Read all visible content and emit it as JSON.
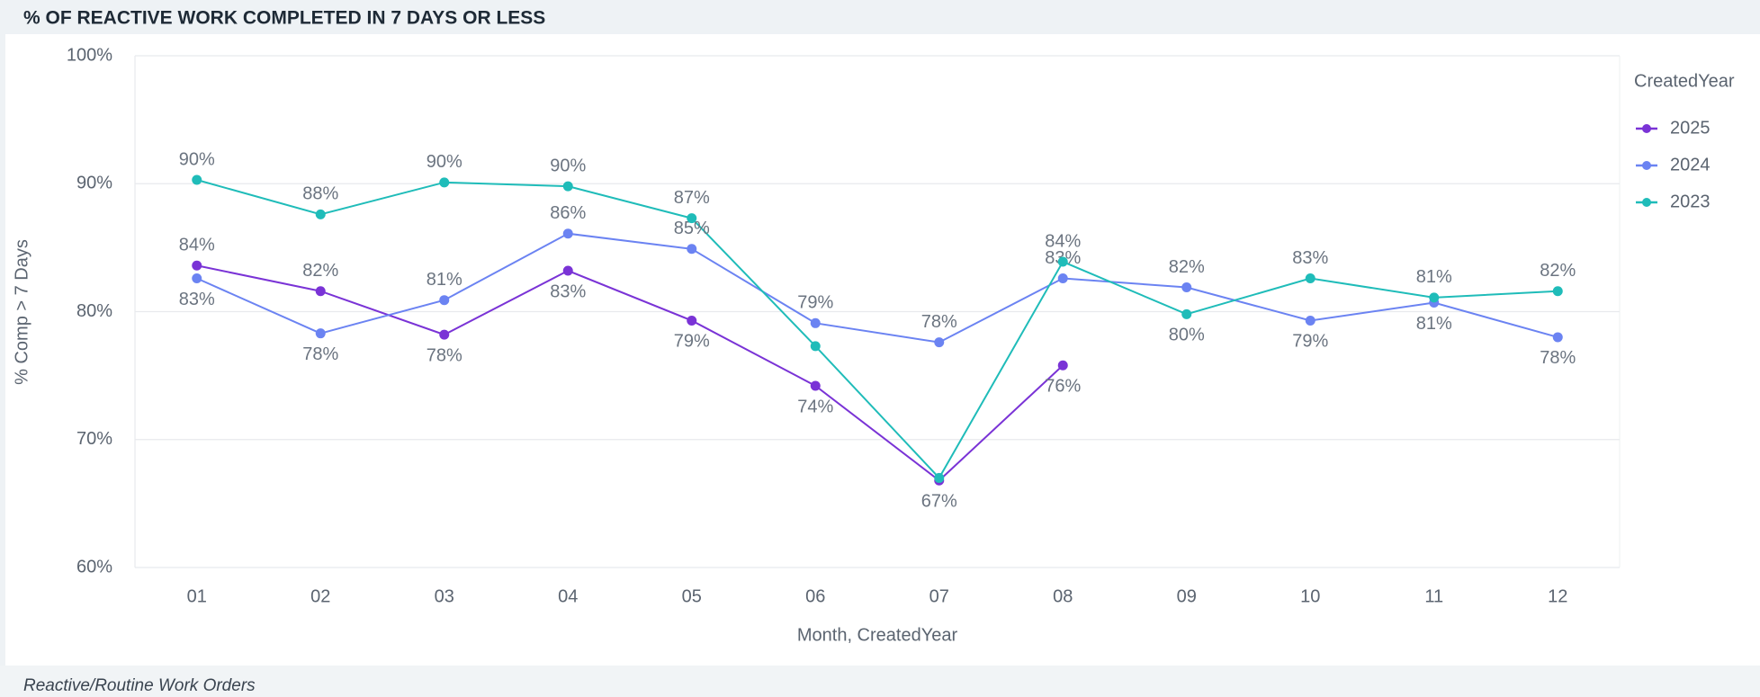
{
  "chart_data": {
    "type": "line",
    "title": "% OF REACTIVE WORK COMPLETED IN 7 DAYS OR LESS",
    "footer": "Reactive/Routine Work Orders",
    "xlabel": "Month, CreatedYear",
    "ylabel": "% Comp > 7 Days",
    "legend_title": "CreatedYear",
    "legend": "right",
    "grid": true,
    "categories": [
      "01",
      "02",
      "03",
      "04",
      "05",
      "06",
      "07",
      "08",
      "09",
      "10",
      "11",
      "12"
    ],
    "ylim": [
      60,
      100
    ],
    "yticks": [
      {
        "value": 60,
        "label": "60%"
      },
      {
        "value": 70,
        "label": "70%"
      },
      {
        "value": 80,
        "label": "80%"
      },
      {
        "value": 90,
        "label": "90%"
      },
      {
        "value": 100,
        "label": "100%"
      }
    ],
    "series": [
      {
        "name": "2025",
        "color": "#7a33d6",
        "values": [
          83.6,
          81.6,
          78.2,
          83.2,
          79.3,
          74.2,
          66.8,
          75.8,
          null,
          null,
          null,
          null
        ],
        "value_labels": [
          "84%",
          "82%",
          "78%",
          "83%",
          "79%",
          "74%",
          "67%",
          "76%",
          null,
          null,
          null,
          null
        ]
      },
      {
        "name": "2024",
        "color": "#6b83f2",
        "values": [
          82.6,
          78.3,
          80.9,
          86.1,
          84.9,
          79.1,
          77.6,
          82.6,
          81.9,
          79.3,
          80.7,
          78.0
        ],
        "value_labels": [
          "83%",
          "78%",
          "81%",
          "86%",
          "85%",
          "79%",
          "78%",
          "83%",
          "82%",
          "79%",
          "81%",
          "78%"
        ]
      },
      {
        "name": "2023",
        "color": "#1fbcb9",
        "values": [
          90.3,
          87.6,
          90.1,
          89.8,
          87.3,
          77.3,
          67.0,
          83.9,
          79.8,
          82.6,
          81.1,
          81.6
        ],
        "value_labels": [
          "90%",
          "88%",
          "90%",
          "90%",
          "87%",
          null,
          null,
          "84%",
          "80%",
          "83%",
          "81%",
          "82%"
        ]
      }
    ]
  }
}
